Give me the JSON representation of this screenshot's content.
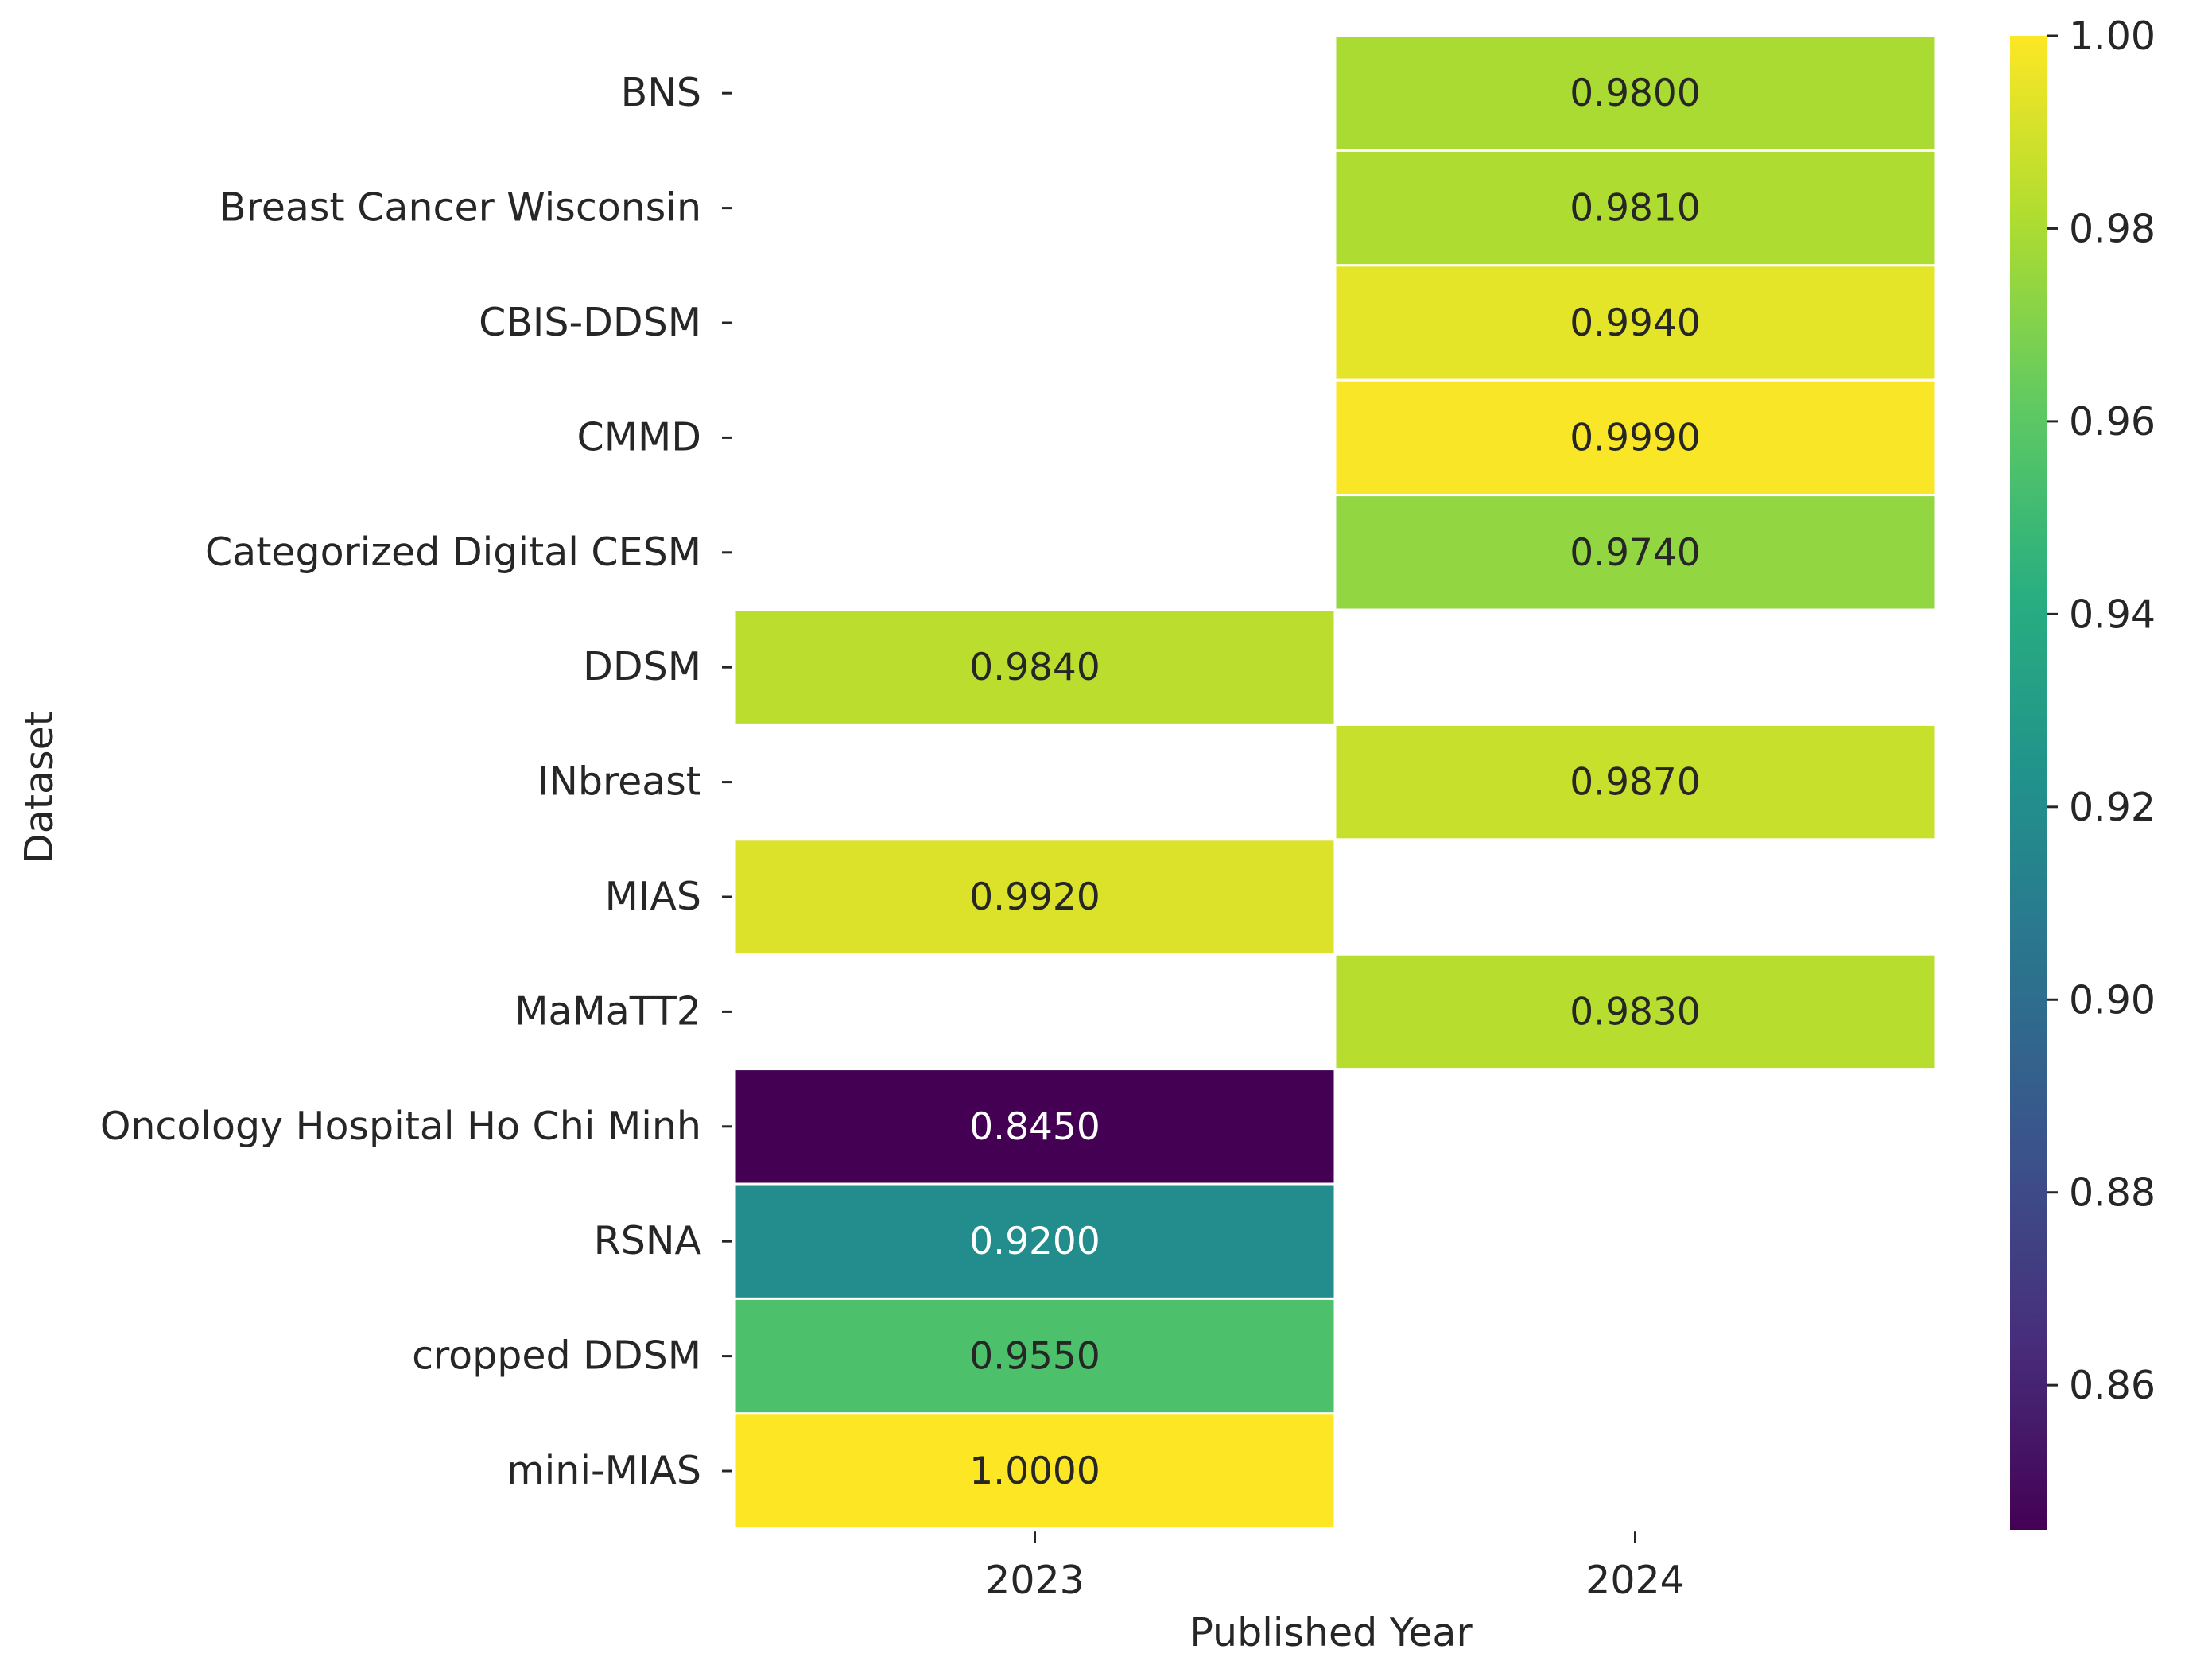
{
  "chart_data": {
    "type": "heatmap",
    "title": "",
    "xlabel": "Published Year",
    "ylabel": "Dataset",
    "x_categories": [
      "2023",
      "2024"
    ],
    "y_categories": [
      "BNS",
      "Breast Cancer Wisconsin",
      "CBIS-DDSM",
      "CMMD",
      "Categorized Digital CESM",
      "DDSM",
      "INbreast",
      "MIAS",
      "MaMaTT2",
      "Oncology Hospital Ho Chi Minh",
      "RSNA",
      "cropped DDSM",
      "mini-MIAS"
    ],
    "cells": [
      {
        "dataset": "BNS",
        "year": "2024",
        "value": 0.98,
        "label": "0.9800"
      },
      {
        "dataset": "Breast Cancer Wisconsin",
        "year": "2024",
        "value": 0.981,
        "label": "0.9810"
      },
      {
        "dataset": "CBIS-DDSM",
        "year": "2024",
        "value": 0.994,
        "label": "0.9940"
      },
      {
        "dataset": "CMMD",
        "year": "2024",
        "value": 0.999,
        "label": "0.9990"
      },
      {
        "dataset": "Categorized Digital CESM",
        "year": "2024",
        "value": 0.974,
        "label": "0.9740"
      },
      {
        "dataset": "DDSM",
        "year": "2023",
        "value": 0.984,
        "label": "0.9840"
      },
      {
        "dataset": "INbreast",
        "year": "2024",
        "value": 0.987,
        "label": "0.9870"
      },
      {
        "dataset": "MIAS",
        "year": "2023",
        "value": 0.992,
        "label": "0.9920"
      },
      {
        "dataset": "MaMaTT2",
        "year": "2024",
        "value": 0.983,
        "label": "0.9830"
      },
      {
        "dataset": "Oncology Hospital Ho Chi Minh",
        "year": "2023",
        "value": 0.845,
        "label": "0.8450"
      },
      {
        "dataset": "RSNA",
        "year": "2023",
        "value": 0.92,
        "label": "0.9200"
      },
      {
        "dataset": "cropped DDSM",
        "year": "2023",
        "value": 0.955,
        "label": "0.9550"
      },
      {
        "dataset": "mini-MIAS",
        "year": "2023",
        "value": 1.0,
        "label": "1.0000"
      }
    ],
    "colormap": "viridis",
    "colorbar": {
      "vmin": 0.845,
      "vmax": 1.0,
      "ticks": [
        0.86,
        0.88,
        0.9,
        0.92,
        0.94,
        0.96,
        0.98,
        1.0
      ],
      "tick_labels": [
        "0.86",
        "0.88",
        "0.90",
        "0.92",
        "0.94",
        "0.96",
        "0.98",
        "1.00"
      ]
    },
    "grid": false,
    "legend": "colorbar-right"
  }
}
